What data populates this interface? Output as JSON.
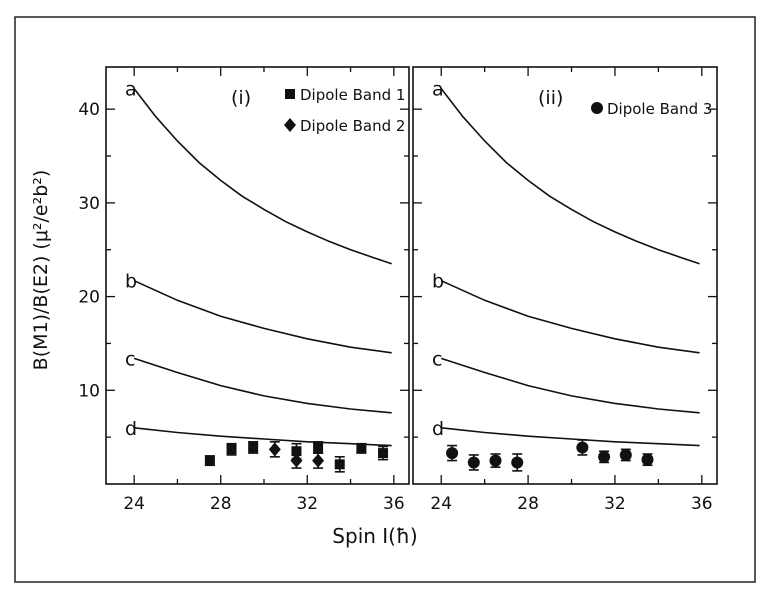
{
  "chart_data": [
    {
      "type": "scatter",
      "panel_label": "(i)",
      "xlabel": "Spin I(ħ)",
      "ylabel": "B(M1)/B(E2)  (μ²/e²b²)",
      "xlim": [
        22.7,
        36.7
      ],
      "ylim": [
        0,
        44.5
      ],
      "x_ticks": [
        24,
        28,
        32,
        36
      ],
      "y_ticks": [
        10,
        20,
        30,
        40
      ],
      "curves": [
        {
          "label": "a",
          "x": [
            24,
            25,
            26,
            27,
            28,
            29,
            30,
            31,
            32,
            33,
            34,
            35,
            35.9
          ],
          "y": [
            42.2,
            39.2,
            36.6,
            34.3,
            32.4,
            30.7,
            29.3,
            28.0,
            26.9,
            25.9,
            25.0,
            24.2,
            23.5
          ]
        },
        {
          "label": "b",
          "x": [
            24,
            26,
            28,
            30,
            32,
            34,
            35.9
          ],
          "y": [
            21.7,
            19.6,
            17.9,
            16.6,
            15.5,
            14.6,
            14.0
          ]
        },
        {
          "label": "c",
          "x": [
            24,
            26,
            28,
            30,
            32,
            34,
            35.9
          ],
          "y": [
            13.4,
            11.9,
            10.5,
            9.4,
            8.6,
            8.0,
            7.6
          ]
        },
        {
          "label": "d",
          "x": [
            24,
            26,
            28,
            30,
            32,
            34,
            35.9
          ],
          "y": [
            6.0,
            5.5,
            5.1,
            4.8,
            4.5,
            4.3,
            4.1
          ]
        }
      ],
      "series": [
        {
          "name": "Dipole Band 1",
          "marker": "square",
          "x": [
            27.5,
            28.5,
            29.5,
            31.5,
            32.5,
            33.5,
            34.5,
            35.5
          ],
          "y": [
            2.5,
            3.7,
            3.9,
            3.5,
            3.9,
            2.1,
            3.8,
            3.3
          ],
          "err": [
            0.5,
            0.6,
            0.6,
            0.8,
            0.6,
            0.8,
            0.5,
            0.7
          ]
        },
        {
          "name": "Dipole Band 2",
          "marker": "diamond",
          "x": [
            30.5,
            31.5,
            32.5
          ],
          "y": [
            3.7,
            2.5,
            2.5
          ],
          "err": [
            0.8,
            0.8,
            0.8
          ]
        }
      ]
    },
    {
      "type": "scatter",
      "panel_label": "(ii)",
      "xlim": [
        22.7,
        36.7
      ],
      "ylim": [
        0,
        44.5
      ],
      "x_ticks": [
        24,
        28,
        32,
        36
      ],
      "curves": [
        {
          "label": "a",
          "x": [
            24,
            25,
            26,
            27,
            28,
            29,
            30,
            31,
            32,
            33,
            34,
            35,
            35.9
          ],
          "y": [
            42.2,
            39.2,
            36.6,
            34.3,
            32.4,
            30.7,
            29.3,
            28.0,
            26.9,
            25.9,
            25.0,
            24.2,
            23.5
          ]
        },
        {
          "label": "b",
          "x": [
            24,
            26,
            28,
            30,
            32,
            34,
            35.9
          ],
          "y": [
            21.7,
            19.6,
            17.9,
            16.6,
            15.5,
            14.6,
            14.0
          ]
        },
        {
          "label": "c",
          "x": [
            24,
            26,
            28,
            30,
            32,
            34,
            35.9
          ],
          "y": [
            13.4,
            11.9,
            10.5,
            9.4,
            8.6,
            8.0,
            7.6
          ]
        },
        {
          "label": "d",
          "x": [
            24,
            26,
            28,
            30,
            32,
            34,
            35.9
          ],
          "y": [
            6.0,
            5.5,
            5.1,
            4.8,
            4.5,
            4.3,
            4.1
          ]
        }
      ],
      "series": [
        {
          "name": "Dipole Band 3",
          "marker": "circle",
          "x": [
            24.5,
            25.5,
            26.5,
            27.5,
            30.5,
            31.5,
            32.5,
            33.5
          ],
          "y": [
            3.3,
            2.3,
            2.5,
            2.3,
            3.9,
            2.9,
            3.1,
            2.6
          ],
          "err": [
            0.8,
            0.8,
            0.7,
            0.9,
            0.8,
            0.6,
            0.6,
            0.6
          ]
        }
      ]
    }
  ]
}
